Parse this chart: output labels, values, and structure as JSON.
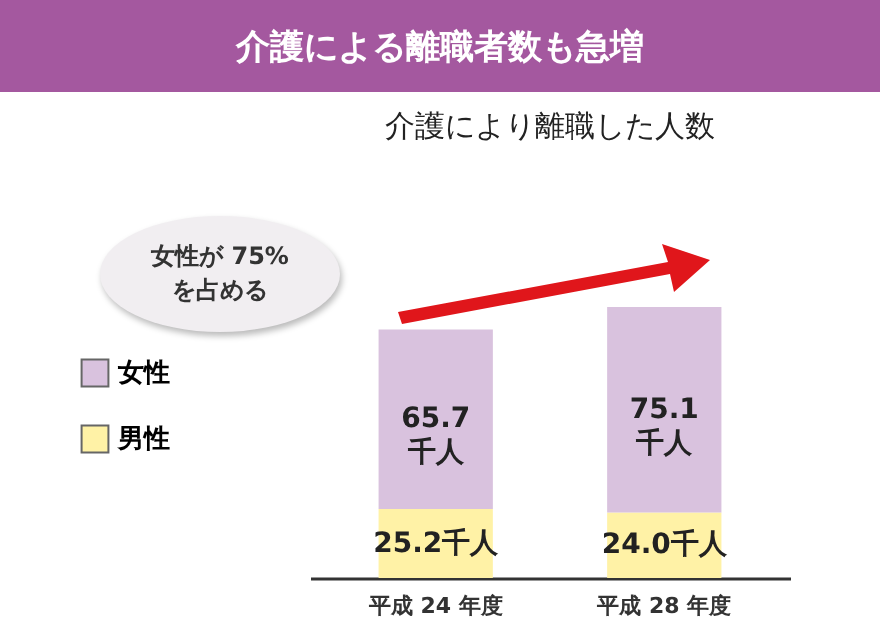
{
  "chart_data": {
    "type": "bar",
    "title": "介護による離職者数も急増",
    "subtitle": "介護により離職した人数",
    "categories": [
      "平成 24 年度",
      "平成 28 年度"
    ],
    "stacked": true,
    "legend": "left",
    "data_labels": true,
    "series": [
      {
        "name": "男性",
        "color": "#fff2a6",
        "values": [
          25.2,
          24.0
        ],
        "value_labels": [
          "25.2千人",
          "24.0千人"
        ]
      },
      {
        "name": "女性",
        "color": "#d9c2de",
        "values": [
          65.7,
          75.1
        ],
        "value_labels": [
          "65.7 千人",
          "75.1 千人"
        ]
      }
    ],
    "annotations": [
      "女性が 75%\nを占める"
    ]
  }
}
